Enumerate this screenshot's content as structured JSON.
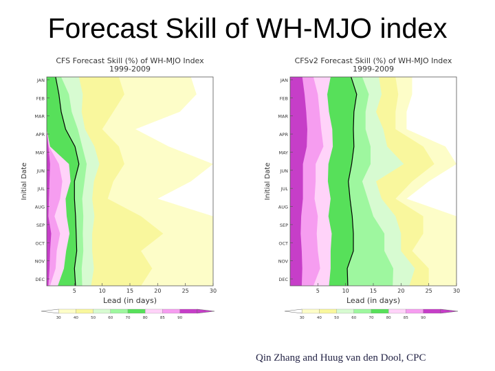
{
  "slide": {
    "title": "Forecast Skill of WH-MJO index",
    "credit": "Qin Zhang and Huug van den Dool, CPC"
  },
  "colors": {
    "lt30": "#ffffff",
    "b30_40": "#fdfdc8",
    "b40_50": "#f9f79d",
    "b50_60": "#d7fbd1",
    "b60_70": "#9ef79f",
    "b70_80": "#57e05a",
    "b80_85": "#ffd3f9",
    "b85_90": "#f69df0",
    "gt90": "#c63ec8",
    "contour": "#000000"
  },
  "chart_data": [
    {
      "type": "heatmap",
      "title": "CFS Forecast Skill (%) of WH-MJO Index",
      "subtitle": "1999-2009",
      "xlabel": "Lead (in days)",
      "ylabel": "Initial Date",
      "xlim": [
        0,
        30
      ],
      "xticks": [
        5,
        10,
        15,
        20,
        25,
        30
      ],
      "yticks": [
        "JAN",
        "FEB",
        "MAR",
        "APR",
        "MAY",
        "JUN",
        "JUL",
        "AUG",
        "SEP",
        "OCT",
        "NOV",
        "DEC"
      ],
      "contour_level": 70,
      "legend_labels": [
        "30",
        "40",
        "50",
        "60",
        "70",
        "80",
        "85",
        "90"
      ],
      "skill_thresholds_lead_days": [
        {
          "level": 90,
          "values": [
            0,
            0,
            0,
            0,
            0.3,
            0.6,
            0.5,
            0.4,
            0.3,
            0.8,
            0.6,
            0.5,
            0.3
          ]
        },
        {
          "level": 85,
          "values": [
            0,
            0,
            0,
            0,
            0.4,
            2.2,
            2.8,
            2.4,
            1.4,
            2.4,
            1.8,
            1.6,
            0.6
          ]
        },
        {
          "level": 80,
          "values": [
            0,
            0,
            0,
            0,
            0.6,
            4.0,
            4.3,
            3.4,
            3.6,
            4.1,
            3.5,
            3.1,
            2.0
          ]
        },
        {
          "level": 70,
          "values": [
            1.6,
            2.2,
            2.6,
            3.4,
            5.1,
            5.8,
            5.0,
            5.0,
            5.2,
            5.3,
            5.4,
            5.0,
            5.2
          ]
        },
        {
          "level": 60,
          "values": [
            2.6,
            4.0,
            4.5,
            5.6,
            6.4,
            7.2,
            6.8,
            6.4,
            6.6,
            6.5,
            6.6,
            6.3,
            6.4
          ]
        },
        {
          "level": 50,
          "values": [
            5.8,
            6.5,
            6.3,
            6.9,
            8.6,
            9.5,
            8.5,
            8.2,
            8.6,
            8.2,
            8.2,
            8.5,
            8.0
          ]
        },
        {
          "level": 40,
          "values": [
            13,
            14,
            12,
            10,
            13,
            14,
            12,
            11,
            17,
            21,
            17,
            19,
            17
          ]
        },
        {
          "level": 30,
          "values": [
            26,
            27,
            24,
            16,
            22,
            30,
            26,
            20,
            30,
            30,
            30,
            30,
            30
          ]
        }
      ]
    },
    {
      "type": "heatmap",
      "title": "CFSv2 Forecast Skill (%) of WH-MJO Index",
      "subtitle": "1999-2009",
      "xlabel": "Lead (in days)",
      "ylabel": "Initial Date",
      "xlim": [
        0,
        30
      ],
      "xticks": [
        5,
        10,
        15,
        20,
        25,
        30
      ],
      "yticks": [
        "JAN",
        "FEB",
        "MAR",
        "APR",
        "MAY",
        "JUN",
        "JUL",
        "AUG",
        "SEP",
        "OCT",
        "NOV",
        "DEC"
      ],
      "contour_level": 70,
      "legend_labels": [
        "30",
        "40",
        "50",
        "60",
        "70",
        "80",
        "85",
        "90"
      ],
      "skill_thresholds_lead_days": [
        {
          "level": 90,
          "values": [
            2.2,
            2.6,
            2.9,
            3.1,
            3.0,
            2.3,
            2.3,
            2.3,
            2.0,
            1.9,
            2.1,
            2.2,
            2.1
          ]
        },
        {
          "level": 85,
          "values": [
            4.2,
            5.0,
            5.3,
            5.6,
            6.0,
            4.6,
            4.6,
            4.4,
            5.0,
            4.8,
            5.0,
            5.4,
            4.2
          ]
        },
        {
          "level": 80,
          "values": [
            7.3,
            6.7,
            7.0,
            7.6,
            7.7,
            6.9,
            6.8,
            7.3,
            6.9,
            7.5,
            7.3,
            7.3,
            7.0
          ]
        },
        {
          "level": 70,
          "values": [
            11.0,
            12.0,
            11.5,
            11.4,
            11.5,
            11.1,
            10.5,
            10.8,
            11.2,
            11.4,
            11.4,
            10.3,
            10.4
          ]
        },
        {
          "level": 60,
          "values": [
            13.0,
            14.2,
            13.6,
            13.6,
            14.5,
            14.5,
            13.0,
            14.0,
            15.0,
            17.0,
            17.0,
            18.6,
            18.5
          ]
        },
        {
          "level": 50,
          "values": [
            16.0,
            16.5,
            15.5,
            16.8,
            17.5,
            20.5,
            15.5,
            16.5,
            19.0,
            20.0,
            20.0,
            22.5,
            21.5
          ]
        },
        {
          "level": 40,
          "values": [
            19.0,
            19.5,
            19.0,
            19.0,
            24.0,
            26.0,
            22.0,
            19.0,
            24.0,
            24.0,
            22.0,
            25.0,
            25.0
          ]
        },
        {
          "level": 30,
          "values": [
            22.0,
            22.0,
            21.0,
            21.0,
            28.0,
            30.0,
            25.0,
            21.0,
            30.0,
            30.0,
            30.0,
            30.0,
            30.0
          ]
        }
      ]
    }
  ]
}
